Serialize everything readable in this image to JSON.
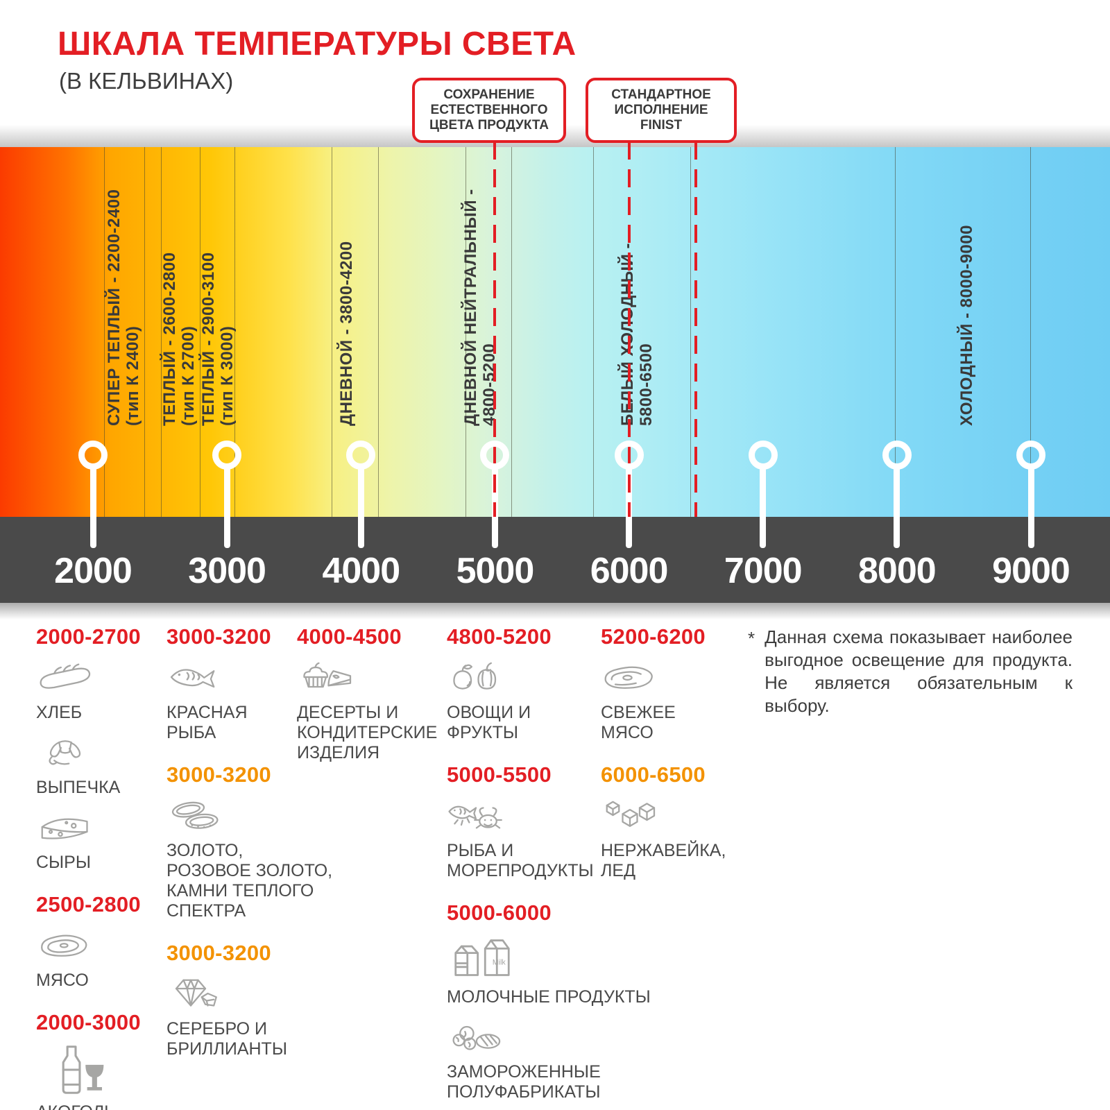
{
  "header": {
    "title": "ШКАЛА ТЕМПЕРАТУРЫ СВЕТА",
    "subtitle": "(В КЕЛЬВИНАХ)"
  },
  "colors": {
    "accent_red": "#E31E24",
    "accent_orange": "#F39200",
    "axis_bar": "#4A4A4A",
    "icon_gray": "#A6A6A4",
    "label_gray": "#3A3A3A"
  },
  "callouts": [
    {
      "lines": [
        "СОХРАНЕНИЕ",
        "ЕСТЕСТВЕННОГО",
        "ЦВЕТА ПРОДУКТА"
      ],
      "points_to_kelvin": [
        5000
      ]
    },
    {
      "lines": [
        "СТАНДАРТНОЕ",
        "ИСПОЛНЕНИЕ",
        "FINIST"
      ],
      "points_to_kelvin": [
        6000,
        6500
      ]
    }
  ],
  "scale": {
    "unit": "K",
    "axis_ticks": [
      2000,
      3000,
      4000,
      5000,
      6000,
      7000,
      8000,
      9000
    ],
    "markers_kelvin": [
      2000,
      3000,
      4000,
      5000,
      6000,
      7000,
      8000,
      9000
    ],
    "highlight_lines_kelvin": [
      5000,
      6000,
      6500
    ],
    "range_labels": [
      {
        "name": "СУПЕР ТЕПЛЫЙ - 2200-2400",
        "sub": "(тип К 2400)",
        "kelvin": 2230
      },
      {
        "name": "ТЕПЛЫЙ - 2600-2800",
        "sub": "(тип К 2700)",
        "kelvin": 2640
      },
      {
        "name": "ТЕПЛЫЙ - 2900-3100",
        "sub": "(тип К 3000)",
        "kelvin": 2930
      },
      {
        "name": "ДНЕВНОЙ - 3800-4200",
        "sub": "",
        "kelvin": 3890
      },
      {
        "name": "ДНЕВНОЙ НЕЙТРАЛЬНЫЙ -",
        "sub": "4800-5200",
        "kelvin": 4890
      },
      {
        "name": "БЕЛЫЙ ХОЛОДНЫЙ -",
        "sub": "5800-6500",
        "kelvin": 6060
      },
      {
        "name": "ХОЛОДНЫЙ - 8000-9000",
        "sub": "",
        "kelvin": 8520
      }
    ]
  },
  "categories": {
    "columns": [
      {
        "blocks": [
          {
            "range": "2000-2700",
            "color": "red",
            "items": [
              {
                "icon": "bread",
                "label": "ХЛЕБ"
              },
              {
                "icon": "croissant",
                "label": "ВЫПЕЧКА"
              },
              {
                "icon": "cheese",
                "label": "СЫРЫ"
              }
            ]
          },
          {
            "range": "2500-2800",
            "color": "red",
            "items": [
              {
                "icon": "meat",
                "label": "МЯСО"
              }
            ]
          },
          {
            "range": "2000-3000",
            "color": "red",
            "items": [
              {
                "icon": "alcohol",
                "label": "АКОГОЛЬ"
              }
            ]
          }
        ]
      },
      {
        "blocks": [
          {
            "range": "3000-3200",
            "color": "red",
            "items": [
              {
                "icon": "fish",
                "label": "КРАСНАЯ\nРЫБА"
              }
            ]
          },
          {
            "range": "3000-3200",
            "color": "orange",
            "items": [
              {
                "icon": "rings",
                "label": "ЗОЛОТО,\nРОЗОВОЕ ЗОЛОТО,\nКАМНИ ТЕПЛОГО\nСПЕКТРА"
              }
            ]
          },
          {
            "range": "3000-3200",
            "color": "orange",
            "items": [
              {
                "icon": "diamonds",
                "label": "СЕРЕБРО И\nБРИЛЛИАНТЫ"
              }
            ]
          }
        ]
      },
      {
        "blocks": [
          {
            "range": "4000-4500",
            "color": "red",
            "items": [
              {
                "icon": "desserts",
                "label": "ДЕСЕРТЫ И\nКОНДИТЕРСКИЕ\nИЗДЕЛИЯ"
              }
            ]
          }
        ]
      },
      {
        "blocks": [
          {
            "range": "4800-5200",
            "color": "red",
            "items": [
              {
                "icon": "vegetables",
                "label": "ОВОЩИ И\nФРУКТЫ"
              }
            ]
          },
          {
            "range": "5000-5500",
            "color": "red",
            "items": [
              {
                "icon": "seafood",
                "label": "РЫБА И\nМОРЕПРОДУКТЫ"
              }
            ]
          },
          {
            "range": "5000-6000",
            "color": "red",
            "items": [
              {
                "icon": "milk",
                "label": "МОЛОЧНЫЕ ПРОДУКТЫ"
              },
              {
                "icon": "frozen",
                "label": "ЗАМОРОЖЕННЫЕ\nПОЛУФАБРИКАТЫ"
              }
            ]
          }
        ]
      },
      {
        "blocks": [
          {
            "range": "5200-6200",
            "color": "red",
            "items": [
              {
                "icon": "fresh-meat",
                "label": "СВЕЖЕЕ\nМЯСО"
              }
            ]
          },
          {
            "range": "6000-6500",
            "color": "orange",
            "items": [
              {
                "icon": "ice",
                "label": "НЕРЖАВЕЙКА,\nЛЕД"
              }
            ]
          }
        ]
      }
    ]
  },
  "footnote": {
    "marker": "*",
    "text": "Данная схема показывает наиболее выгодное освещение для продукта. Не является обязательным к выбору."
  }
}
